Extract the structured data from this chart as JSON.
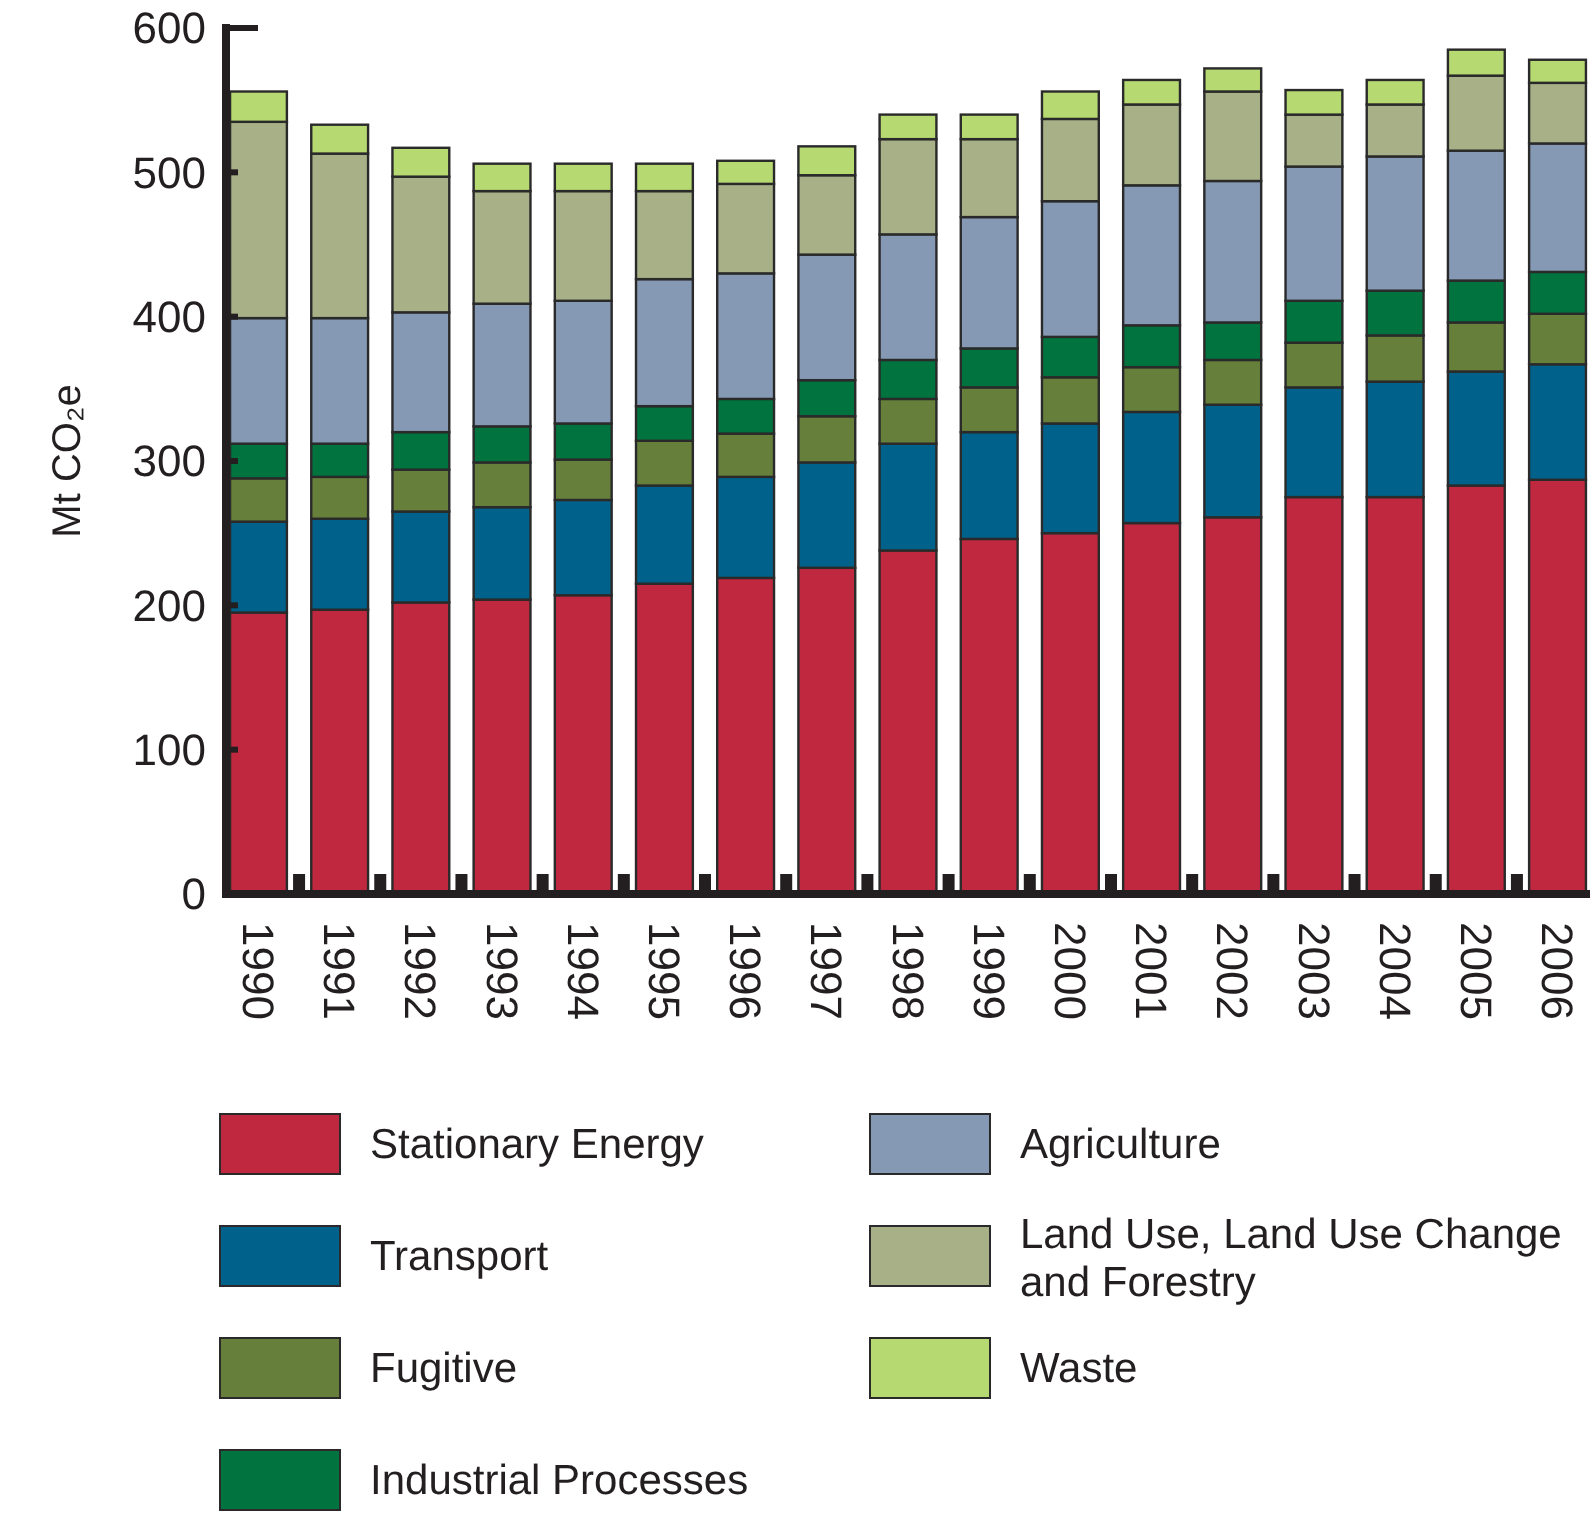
{
  "chart_data": {
    "type": "bar",
    "stacked": true,
    "ylabel": "Mt CO₂e",
    "categories": [
      "1990",
      "1991",
      "1992",
      "1993",
      "1994",
      "1995",
      "1996",
      "1997",
      "1998",
      "1999",
      "2000",
      "2001",
      "2002",
      "2003",
      "2004",
      "2005",
      "2006"
    ],
    "ylim": [
      0,
      600
    ],
    "yticks": [
      0,
      100,
      200,
      300,
      400,
      500,
      600
    ],
    "grid": false,
    "legend": "bottom",
    "series": [
      {
        "name": "Stationary Energy",
        "color": "#c0283f",
        "values": [
          195,
          197,
          202,
          204,
          207,
          215,
          219,
          226,
          238,
          246,
          250,
          257,
          261,
          275,
          275,
          283,
          287
        ]
      },
      {
        "name": "Transport",
        "color": "#00628a",
        "values": [
          63,
          63,
          63,
          64,
          66,
          68,
          70,
          73,
          74,
          74,
          76,
          77,
          78,
          76,
          80,
          79,
          80
        ]
      },
      {
        "name": "Fugitive",
        "color": "#667f3a",
        "values": [
          30,
          29,
          29,
          31,
          28,
          31,
          30,
          32,
          31,
          31,
          32,
          31,
          31,
          31,
          32,
          34,
          35
        ]
      },
      {
        "name": "Industrial Processes",
        "color": "#00733f",
        "values": [
          24,
          23,
          26,
          25,
          25,
          24,
          24,
          25,
          27,
          27,
          28,
          29,
          26,
          29,
          31,
          29,
          29
        ]
      },
      {
        "name": "Agriculture",
        "color": "#8599b4",
        "values": [
          87,
          87,
          83,
          85,
          85,
          88,
          87,
          87,
          87,
          91,
          94,
          97,
          98,
          93,
          93,
          90,
          89
        ]
      },
      {
        "name": "Land Use, Land Use Change and Forestry",
        "color": "#a7b086",
        "values": [
          136,
          114,
          94,
          78,
          76,
          61,
          62,
          55,
          66,
          54,
          57,
          56,
          62,
          36,
          36,
          52,
          42
        ]
      },
      {
        "name": "Waste",
        "color": "#b6d971",
        "values": [
          21,
          20,
          20,
          19,
          19,
          19,
          16,
          20,
          17,
          17,
          19,
          17,
          16,
          17,
          17,
          18,
          16
        ]
      }
    ]
  }
}
